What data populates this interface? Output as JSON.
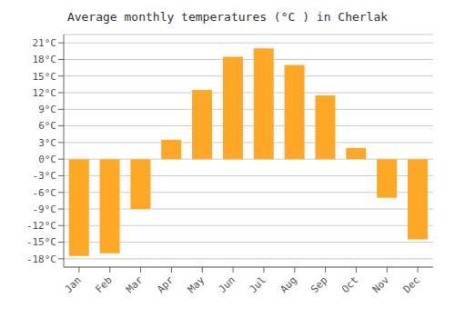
{
  "chart_data": {
    "type": "bar",
    "title": "Average monthly temperatures (°C ) in Cherlak",
    "categories": [
      "Jan",
      "Feb",
      "Mar",
      "Apr",
      "May",
      "Jun",
      "Jul",
      "Aug",
      "Sep",
      "Oct",
      "Nov",
      "Dec"
    ],
    "values": [
      -17.5,
      -17.0,
      -9.0,
      3.5,
      12.5,
      18.5,
      20.0,
      17.0,
      11.5,
      2.0,
      -7.0,
      -14.5
    ],
    "color": "#FFA726",
    "ylim": [
      -19.5,
      22.5
    ],
    "yticks": [
      {
        "value": -18,
        "label": "-18°C"
      },
      {
        "value": -15,
        "label": "-15°C"
      },
      {
        "value": -12,
        "label": "-12°C"
      },
      {
        "value": -9,
        "label": "-9°C"
      },
      {
        "value": -6,
        "label": "-6°C"
      },
      {
        "value": -3,
        "label": "-3°C"
      },
      {
        "value": 0,
        "label": "0°C"
      },
      {
        "value": 3,
        "label": "3°C"
      },
      {
        "value": 6,
        "label": "6°C"
      },
      {
        "value": 9,
        "label": "9°C"
      },
      {
        "value": 12,
        "label": "12°C"
      },
      {
        "value": 15,
        "label": "15°C"
      },
      {
        "value": 18,
        "label": "18°C"
      },
      {
        "value": 21,
        "label": "21°C"
      }
    ],
    "grid": true
  }
}
